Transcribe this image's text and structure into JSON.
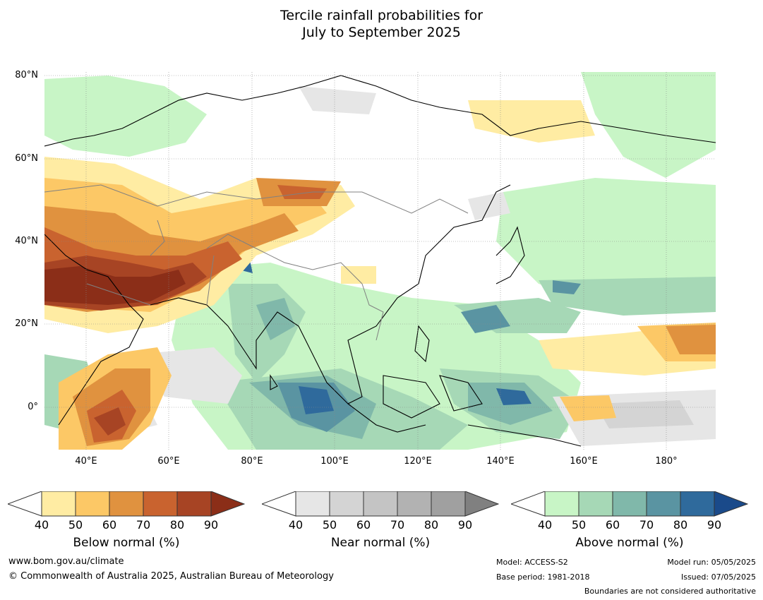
{
  "title_line1": "Tercile rainfall probabilities for",
  "title_line2": "July to September 2025",
  "lat_labels": [
    "80°N",
    "60°N",
    "40°N",
    "20°N",
    "0°"
  ],
  "lon_labels": [
    "40°E",
    "60°E",
    "80°E",
    "100°E",
    "120°E",
    "140°E",
    "160°E",
    "180°"
  ],
  "colorbars": {
    "below": {
      "label": "Below normal (%)",
      "ticks": [
        "40",
        "50",
        "60",
        "70",
        "80",
        "90"
      ],
      "colors": [
        "#ffeca3",
        "#fcc866",
        "#e0923f",
        "#c9632f",
        "#a74424",
        "#8b2e18"
      ]
    },
    "near": {
      "label": "Near normal (%)",
      "ticks": [
        "40",
        "50",
        "60",
        "70",
        "80",
        "90"
      ],
      "colors": [
        "#e6e6e6",
        "#d4d4d4",
        "#c4c4c4",
        "#b2b2b2",
        "#a0a0a0",
        "#808080"
      ]
    },
    "above": {
      "label": "Above normal (%)",
      "ticks": [
        "40",
        "50",
        "60",
        "70",
        "80",
        "90"
      ],
      "colors": [
        "#c8f5c6",
        "#a6d8b6",
        "#80b8aa",
        "#5a94a2",
        "#2f6a9c",
        "#1a4a8a"
      ]
    }
  },
  "footer": {
    "url": "www.bom.gov.au/climate",
    "copyright": "© Commonwealth of Australia 2025, Australian Bureau of Meteorology",
    "model": "Model: ACCESS-S2",
    "base_period": "Base period: 1981-2018",
    "model_run": "Model run: 05/05/2025",
    "issued": "Issued: 07/05/2025",
    "disclaimer": "Boundaries are not considered authoritative"
  }
}
